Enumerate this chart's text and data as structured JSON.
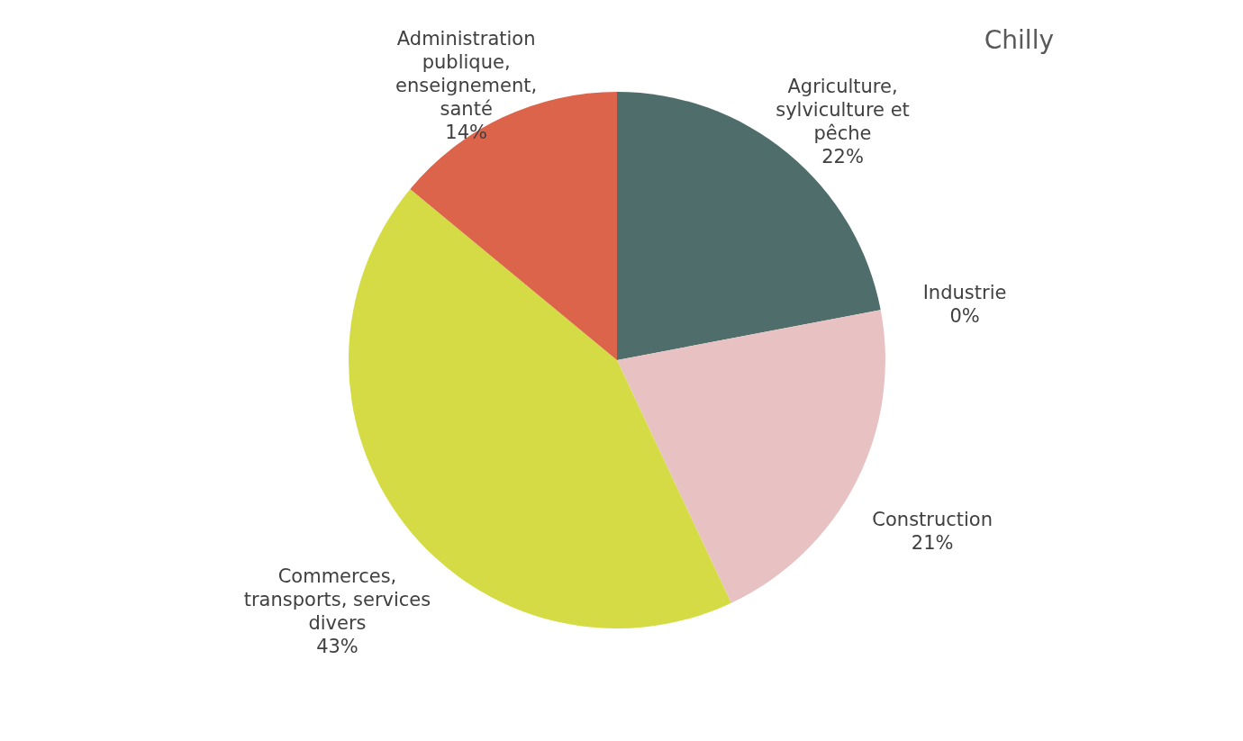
{
  "chart_data": {
    "type": "pie",
    "title": "Chilly",
    "categories": [
      "Agriculture,\nsylviculture et\npêche",
      "Industrie",
      "Construction",
      "Commerces,\ntransports, services\ndivers",
      "Administration\npublique,\nenseignement,\nsanté"
    ],
    "values": [
      22,
      0,
      21,
      43,
      14
    ],
    "colors": [
      "#4f6d6b",
      "#8c8c8c",
      "#e8c2c2",
      "#d5db44",
      "#db644b"
    ],
    "value_labels": [
      "22%",
      "0%",
      "21%",
      "43%",
      "14%"
    ],
    "legend": false
  }
}
